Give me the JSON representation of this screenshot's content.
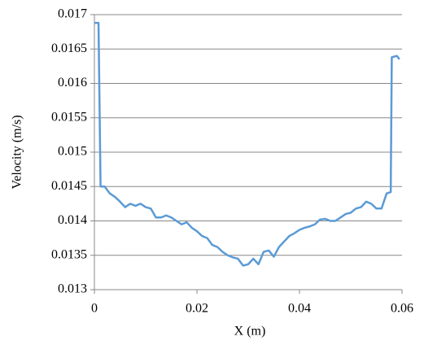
{
  "chart_data": {
    "type": "line",
    "xlabel": "X (m)",
    "ylabel": "Velocity (m/s)",
    "xlim": [
      0,
      0.06
    ],
    "xticks": [
      0,
      0.02,
      0.04,
      0.06
    ],
    "ylim": [
      0.013,
      0.017
    ],
    "yticks": [
      0.013,
      0.0135,
      0.014,
      0.0145,
      0.015,
      0.0155,
      0.016,
      0.0165,
      0.017
    ],
    "grid": true,
    "x": [
      0,
      0.0008,
      0.0012,
      0.002,
      0.003,
      0.004,
      0.005,
      0.006,
      0.007,
      0.008,
      0.009,
      0.01,
      0.011,
      0.012,
      0.013,
      0.014,
      0.015,
      0.016,
      0.017,
      0.018,
      0.019,
      0.02,
      0.021,
      0.022,
      0.023,
      0.024,
      0.025,
      0.026,
      0.027,
      0.028,
      0.029,
      0.03,
      0.031,
      0.032,
      0.033,
      0.034,
      0.035,
      0.036,
      0.037,
      0.038,
      0.039,
      0.04,
      0.041,
      0.042,
      0.043,
      0.044,
      0.045,
      0.046,
      0.047,
      0.048,
      0.049,
      0.05,
      0.051,
      0.052,
      0.053,
      0.054,
      0.055,
      0.056,
      0.057,
      0.0578,
      0.058,
      0.059,
      0.0595
    ],
    "series": [
      {
        "color": "#5b9bd5",
        "values": [
          0.01688,
          0.01688,
          0.0145,
          0.0145,
          0.0144,
          0.01435,
          0.01428,
          0.0142,
          0.01425,
          0.01422,
          0.01425,
          0.0142,
          0.01418,
          0.01405,
          0.01405,
          0.01408,
          0.01405,
          0.014,
          0.01395,
          0.01398,
          0.0139,
          0.01385,
          0.01378,
          0.01375,
          0.01365,
          0.01362,
          0.01355,
          0.0135,
          0.01347,
          0.01345,
          0.01335,
          0.01337,
          0.01345,
          0.01337,
          0.01355,
          0.01357,
          0.01348,
          0.01362,
          0.0137,
          0.01378,
          0.01382,
          0.01387,
          0.0139,
          0.01392,
          0.01395,
          0.01402,
          0.01403,
          0.014,
          0.014,
          0.01405,
          0.0141,
          0.01412,
          0.01418,
          0.0142,
          0.01428,
          0.01425,
          0.01418,
          0.01418,
          0.0144,
          0.01442,
          0.01638,
          0.0164,
          0.01635
        ]
      }
    ]
  }
}
